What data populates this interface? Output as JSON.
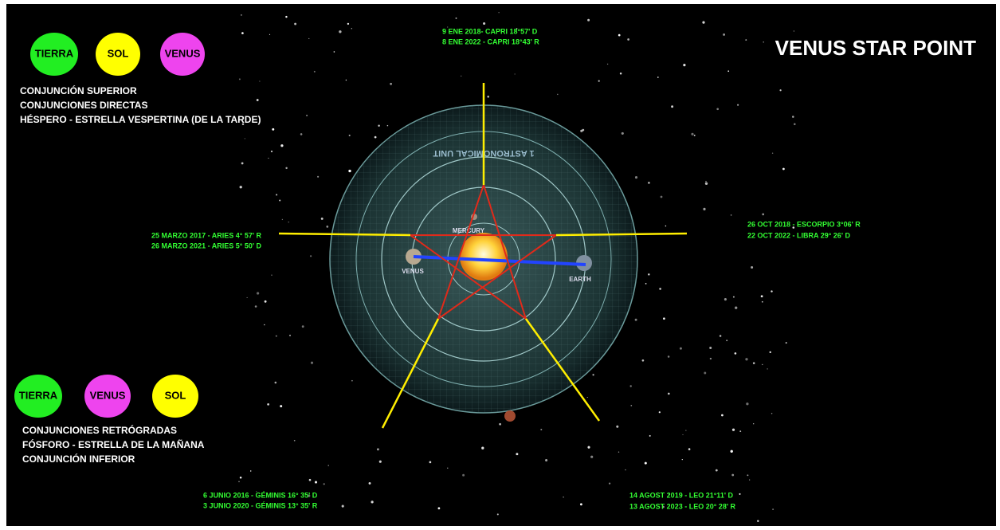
{
  "title": "VENUS STAR POINT",
  "top_legend": {
    "circles": [
      "TIERRA",
      "SOL",
      "VENUS"
    ],
    "lines": [
      "CONJUNCIÓN SUPERIOR",
      "CONJUNCIONES DIRECTAS",
      "HÉSPERO - ESTRELLA VESPERTINA (DE LA TARDE)"
    ]
  },
  "bottom_legend": {
    "circles": [
      "TIERRA",
      "VENUS",
      "SOL"
    ],
    "lines": [
      "CONJUNCIONES RETRÓGRADAS",
      "FÓSFORO - ESTRELLA DE LA MAÑANA",
      "CONJUNCIÓN INFERIOR"
    ]
  },
  "dates": {
    "top": [
      "9 ENE 2018- CAPRI 18°57' D",
      "8 ENE 2022 - CAPRI 18°43' R"
    ],
    "left": [
      "25 MARZO 2017 - ARIES  4° 57' R",
      "26 MARZO 2021 - ARIES 5° 50' D"
    ],
    "right": [
      "26 OCT 2018 - ESCORPIO 3°06' R",
      "22 OCT 2022 - LIBRA 29° 26' D"
    ],
    "bottom_left": [
      "6 JUNIO 2016 - GÉMINIS 16° 35' D",
      "3 JUNIO 2020 - GÉMINIS 13° 35' R"
    ],
    "bottom_right": [
      "14 AGOST 2019  - LEO 21°11' D",
      "13 AGOST 2023  - LEO 20° 28' R"
    ]
  },
  "diagram_labels": {
    "unit": "1 ASTRONOMICAL UNIT",
    "mercury": "MERCURY",
    "venus": "VENUS",
    "earth": "EARTH"
  }
}
